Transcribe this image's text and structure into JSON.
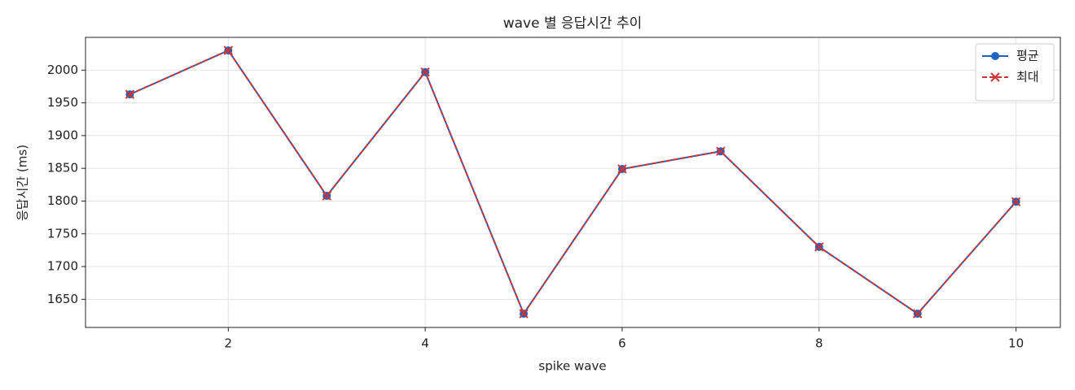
{
  "chart_data": {
    "type": "line",
    "title": "wave 별 응답시간 추이",
    "x_label": "spike wave",
    "y_label": "응답시간 (ms)",
    "x": [
      1,
      2,
      3,
      4,
      5,
      6,
      7,
      8,
      9,
      10
    ],
    "series": [
      {
        "name": "평균",
        "color": "#1f62c0",
        "line_style": "solid",
        "marker": "circle",
        "values": [
          1963,
          2030,
          1808,
          1997,
          1628,
          1849,
          1876,
          1730,
          1628,
          1799
        ]
      },
      {
        "name": "최대",
        "color": "#cc3333",
        "line_style": "dashed",
        "marker": "x",
        "values": [
          1963,
          2030,
          1808,
          1997,
          1628,
          1849,
          1876,
          1730,
          1628,
          1799
        ]
      }
    ],
    "xlim": [
      0.55,
      10.45
    ],
    "ylim": [
      1607,
      2050
    ],
    "xticks": [
      2,
      4,
      6,
      8,
      10
    ],
    "yticks": [
      1650,
      1700,
      1750,
      1800,
      1850,
      1900,
      1950,
      2000
    ],
    "grid": true,
    "legend": "upper right"
  }
}
